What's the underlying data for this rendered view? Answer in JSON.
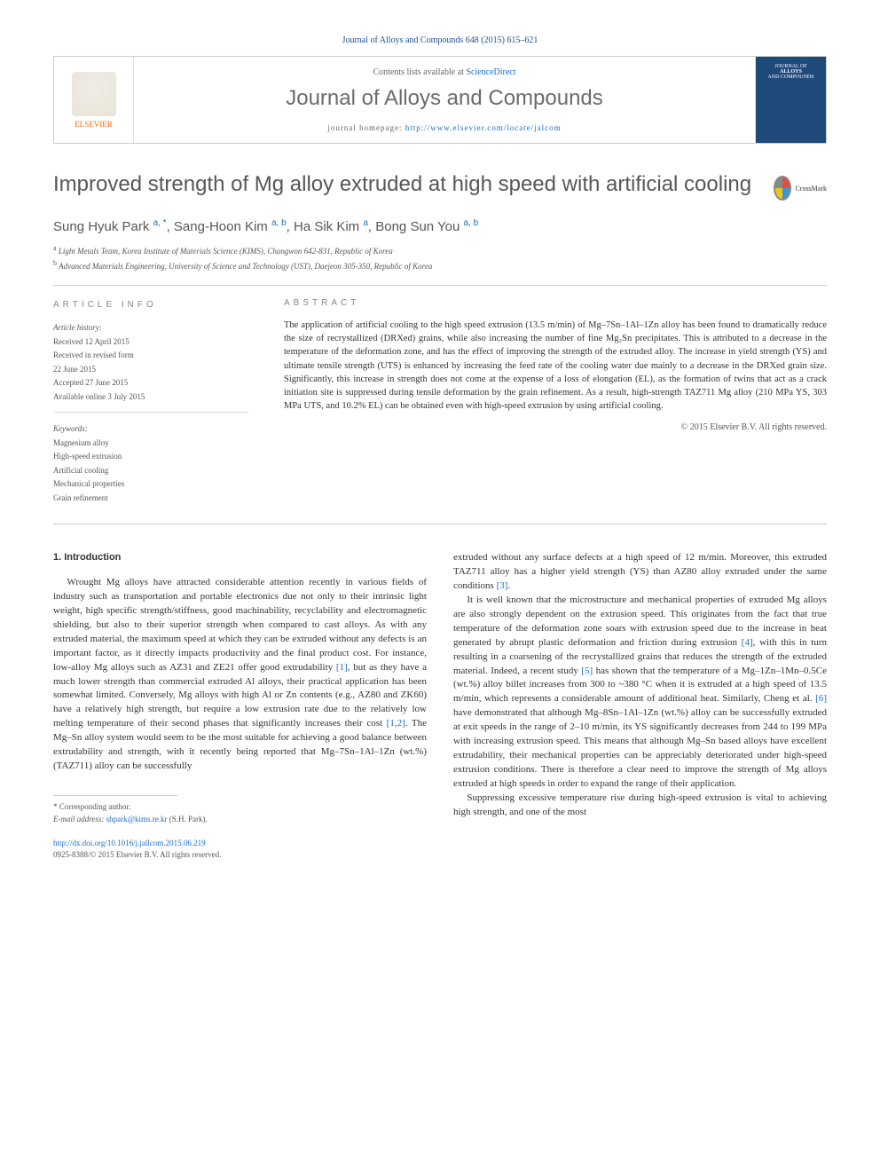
{
  "citation": "Journal of Alloys and Compounds 648 (2015) 615–621",
  "header": {
    "elsevier_label": "ELSEVIER",
    "contents_prefix": "Contents lists available at ",
    "contents_link": "ScienceDirect",
    "journal_name": "Journal of Alloys and Compounds",
    "homepage_prefix": "journal homepage: ",
    "homepage_url": "http://www.elsevier.com/locate/jalcom",
    "cover_text_1": "JOURNAL OF",
    "cover_text_2": "ALLOYS",
    "cover_text_3": "AND COMPOUNDS"
  },
  "title": "Improved strength of Mg alloy extruded at high speed with artificial cooling",
  "crossmark_label": "CrossMark",
  "authors_html": "Sung Hyuk Park <sup>a, *</sup>, Sang-Hoon Kim <sup>a, b</sup>, Ha Sik Kim <sup>a</sup>, Bong Sun You <sup>a, b</sup>",
  "affiliations": [
    {
      "sup": "a",
      "text": "Light Metals Team, Korea Institute of Materials Science (KIMS), Changwon 642-831, Republic of Korea"
    },
    {
      "sup": "b",
      "text": "Advanced Materials Engineering, University of Science and Technology (UST), Daejeon 305-350, Republic of Korea"
    }
  ],
  "article_info": {
    "heading": "ARTICLE INFO",
    "history_label": "Article history:",
    "received": "Received 12 April 2015",
    "revised_1": "Received in revised form",
    "revised_2": "22 June 2015",
    "accepted": "Accepted 27 June 2015",
    "online": "Available online 3 July 2015",
    "keywords_label": "Keywords:",
    "keywords": [
      "Magnesium alloy",
      "High-speed extrusion",
      "Artificial cooling",
      "Mechanical properties",
      "Grain refinement"
    ]
  },
  "abstract": {
    "heading": "ABSTRACT",
    "text": "The application of artificial cooling to the high speed extrusion (13.5 m/min) of Mg–7Sn–1Al–1Zn alloy has been found to dramatically reduce the size of recrystallized (DRXed) grains, while also increasing the number of fine Mg₂Sn precipitates. This is attributed to a decrease in the temperature of the deformation zone, and has the effect of improving the strength of the extruded alloy. The increase in yield strength (YS) and ultimate tensile strength (UTS) is enhanced by increasing the feed rate of the cooling water due mainly to a decrease in the DRXed grain size. Significantly, this increase in strength does not come at the expense of a loss of elongation (EL), as the formation of twins that act as a crack initiation site is suppressed during tensile deformation by the grain refinement. As a result, high-strength TAZ711 Mg alloy (210 MPa YS, 303 MPa UTS, and 10.2% EL) can be obtained even with high-speed extrusion by using artificial cooling.",
    "copyright": "© 2015 Elsevier B.V. All rights reserved."
  },
  "body": {
    "section_heading": "1. Introduction",
    "col1_paras": [
      "Wrought Mg alloys have attracted considerable attention recently in various fields of industry such as transportation and portable electronics due not only to their intrinsic light weight, high specific strength/stiffness, good machinability, recyclability and electromagnetic shielding, but also to their superior strength when compared to cast alloys. As with any extruded material, the maximum speed at which they can be extruded without any defects is an important factor, as it directly impacts productivity and the final product cost. For instance, low-alloy Mg alloys such as AZ31 and ZE21 offer good extrudability <span class=\"ref-link\">[1]</span>, but as they have a much lower strength than commercial extruded Al alloys, their practical application has been somewhat limited. Conversely, Mg alloys with high Al or Zn contents (e.g., AZ80 and ZK60) have a relatively high strength, but require a low extrusion rate due to the relatively low melting temperature of their second phases that significantly increases their cost <span class=\"ref-link\">[1,2]</span>. The Mg–Sn alloy system would seem to be the most suitable for achieving a good balance between extrudability and strength, with it recently being reported that Mg–7Sn–1Al–1Zn (wt.%) (TAZ711) alloy can be successfully"
    ],
    "col2_paras": [
      "extruded without any surface defects at a high speed of 12 m/min. Moreover, this extruded TAZ711 alloy has a higher yield strength (YS) than AZ80 alloy extruded under the same conditions <span class=\"ref-link\">[3]</span>.",
      "It is well known that the microstructure and mechanical properties of extruded Mg alloys are also strongly dependent on the extrusion speed. This originates from the fact that true temperature of the deformation zone soars with extrusion speed due to the increase in heat generated by abrupt plastic deformation and friction during extrusion <span class=\"ref-link\">[4]</span>, with this in turn resulting in a coarsening of the recrystallized grains that reduces the strength of the extruded material. Indeed, a recent study <span class=\"ref-link\">[5]</span> has shown that the temperature of a Mg–1Zn–1Mn–0.5Ce (wt.%) alloy billet increases from 300 to ~380 °C when it is extruded at a high speed of 13.5 m/min, which represents a considerable amount of additional heat. Similarly, Cheng et al. <span class=\"ref-link\">[6]</span> have demonstrated that although Mg–8Sn–1Al–1Zn (wt.%) alloy can be successfully extruded at exit speeds in the range of 2–10 m/min, its YS significantly decreases from 244 to 199 MPa with increasing extrusion speed. This means that although Mg–Sn based alloys have excellent extrudability, their mechanical properties can be appreciably deteriorated under high-speed extrusion conditions. There is therefore a clear need to improve the strength of Mg alloys extruded at high speeds in order to expand the range of their application.",
      "Suppressing excessive temperature rise during high-speed extrusion is vital to achieving high strength, and one of the most"
    ]
  },
  "footer": {
    "corr_label": "* Corresponding author.",
    "email_label": "E-mail address: ",
    "email": "shpark@kims.re.kr",
    "email_name": " (S.H. Park).",
    "doi": "http://dx.doi.org/10.1016/j.jallcom.2015.06.219",
    "issn": "0925-8388/© 2015 Elsevier B.V. All rights reserved."
  }
}
